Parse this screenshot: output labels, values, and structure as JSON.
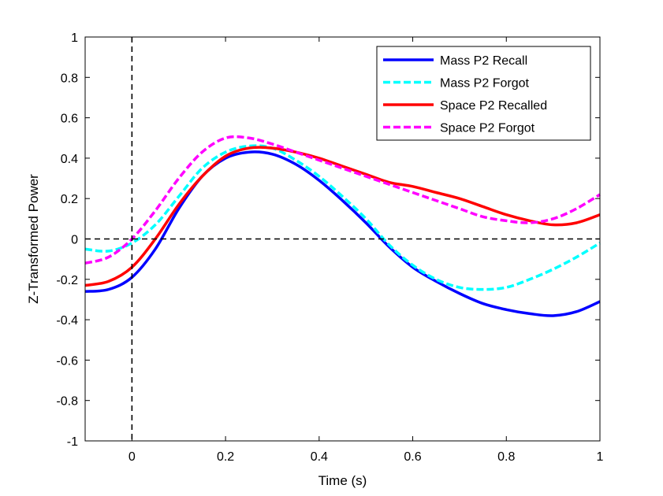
{
  "chart_data": {
    "type": "line",
    "title": "",
    "xlabel": "Time (s)",
    "ylabel": "Z-Transformed Power",
    "xlim": [
      -0.1,
      1
    ],
    "ylim": [
      -1,
      1
    ],
    "xticks": [
      0,
      0.2,
      0.4,
      0.6,
      0.8,
      1
    ],
    "xtick_labels": [
      "0",
      "0.2",
      "0.4",
      "0.6",
      "0.8",
      "1"
    ],
    "yticks": [
      -1,
      -0.8,
      -0.6,
      -0.4,
      -0.2,
      0,
      0.2,
      0.4,
      0.6,
      0.8,
      1
    ],
    "ytick_labels": [
      "-1",
      "-0.8",
      "-0.6",
      "-0.4",
      "-0.2",
      "0",
      "0.2",
      "0.4",
      "0.6",
      "0.8",
      "1"
    ],
    "grid": false,
    "legend_position": "top-right",
    "reference_lines": [
      {
        "orientation": "vertical",
        "value": 0,
        "style": "dashed",
        "color": "#000000"
      },
      {
        "orientation": "horizontal",
        "value": 0,
        "style": "dashed",
        "color": "#000000"
      }
    ],
    "x": [
      -0.1,
      -0.05,
      0,
      0.05,
      0.1,
      0.15,
      0.2,
      0.25,
      0.3,
      0.35,
      0.4,
      0.45,
      0.5,
      0.55,
      0.6,
      0.65,
      0.7,
      0.75,
      0.8,
      0.85,
      0.9,
      0.95,
      1.0
    ],
    "series": [
      {
        "name": "Mass P2 Recall",
        "color": "#0000ff",
        "style": "solid",
        "values": [
          -0.26,
          -0.25,
          -0.19,
          -0.05,
          0.15,
          0.31,
          0.4,
          0.43,
          0.42,
          0.37,
          0.29,
          0.19,
          0.08,
          -0.04,
          -0.14,
          -0.21,
          -0.27,
          -0.32,
          -0.35,
          -0.37,
          -0.38,
          -0.36,
          -0.31
        ]
      },
      {
        "name": "Mass P2 Forgot",
        "color": "#00ffff",
        "style": "dashed",
        "values": [
          -0.05,
          -0.06,
          -0.02,
          0.07,
          0.21,
          0.35,
          0.43,
          0.46,
          0.45,
          0.39,
          0.31,
          0.21,
          0.1,
          -0.03,
          -0.13,
          -0.2,
          -0.24,
          -0.25,
          -0.24,
          -0.2,
          -0.15,
          -0.09,
          -0.02
        ]
      },
      {
        "name": "Space P2 Recalled",
        "color": "#ff0000",
        "style": "solid",
        "values": [
          -0.23,
          -0.21,
          -0.14,
          0.0,
          0.17,
          0.31,
          0.41,
          0.45,
          0.45,
          0.43,
          0.4,
          0.36,
          0.32,
          0.28,
          0.26,
          0.23,
          0.2,
          0.16,
          0.12,
          0.09,
          0.07,
          0.08,
          0.12
        ]
      },
      {
        "name": "Space P2 Forgot",
        "color": "#ff00ff",
        "style": "dashed",
        "values": [
          -0.12,
          -0.09,
          0.0,
          0.14,
          0.3,
          0.43,
          0.5,
          0.5,
          0.47,
          0.43,
          0.39,
          0.35,
          0.31,
          0.27,
          0.23,
          0.19,
          0.15,
          0.11,
          0.09,
          0.08,
          0.1,
          0.15,
          0.22
        ]
      }
    ]
  }
}
